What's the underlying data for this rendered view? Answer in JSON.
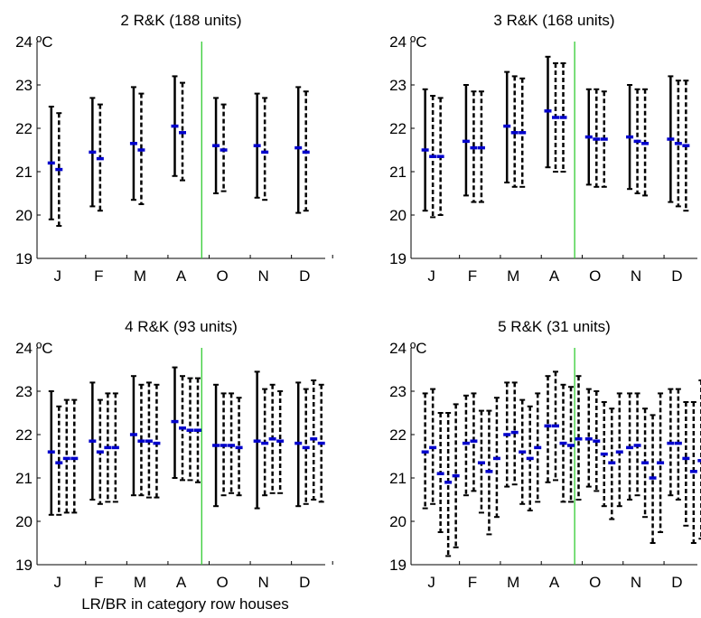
{
  "xlabel": "LR/BR in category row houses",
  "colors": {
    "error_bar": "#000000",
    "median": "#0000cc",
    "divider": "#33cc33",
    "axes": "#000000"
  },
  "chart_data": [
    {
      "type": "errorbar",
      "title": "2 R&K  (188 units)",
      "unit_label": "ºC",
      "ylim": [
        19,
        24
      ],
      "yticks": [
        19,
        20,
        21,
        22,
        23,
        24
      ],
      "months": [
        "J",
        "F",
        "M",
        "A",
        "O",
        "N",
        "D"
      ],
      "divider_after": "A",
      "groups": [
        {
          "month": "J",
          "bars": [
            {
              "low": 19.9,
              "high": 22.5,
              "median": 21.2
            },
            {
              "low": 19.75,
              "high": 22.35,
              "median": 21.05
            }
          ]
        },
        {
          "month": "F",
          "bars": [
            {
              "low": 20.2,
              "high": 22.7,
              "median": 21.45
            },
            {
              "low": 20.1,
              "high": 22.55,
              "median": 21.3
            }
          ]
        },
        {
          "month": "M",
          "bars": [
            {
              "low": 20.35,
              "high": 22.95,
              "median": 21.65
            },
            {
              "low": 20.25,
              "high": 22.8,
              "median": 21.5
            }
          ]
        },
        {
          "month": "A",
          "bars": [
            {
              "low": 20.9,
              "high": 23.2,
              "median": 22.05
            },
            {
              "low": 20.8,
              "high": 23.05,
              "median": 21.9
            }
          ]
        },
        {
          "month": "O",
          "bars": [
            {
              "low": 20.5,
              "high": 22.7,
              "median": 21.6
            },
            {
              "low": 20.55,
              "high": 22.55,
              "median": 21.5
            }
          ]
        },
        {
          "month": "N",
          "bars": [
            {
              "low": 20.4,
              "high": 22.8,
              "median": 21.6
            },
            {
              "low": 20.35,
              "high": 22.7,
              "median": 21.45
            }
          ]
        },
        {
          "month": "D",
          "bars": [
            {
              "low": 20.05,
              "high": 22.95,
              "median": 21.55
            },
            {
              "low": 20.1,
              "high": 22.85,
              "median": 21.45
            }
          ]
        }
      ]
    },
    {
      "type": "errorbar",
      "title": "3 R&K  (168 units)",
      "unit_label": "ºC",
      "ylim": [
        19,
        24
      ],
      "yticks": [
        19,
        20,
        21,
        22,
        23,
        24
      ],
      "months": [
        "J",
        "F",
        "M",
        "A",
        "O",
        "N",
        "D"
      ],
      "divider_after": "A",
      "groups": [
        {
          "month": "J",
          "bars": [
            {
              "low": 20.1,
              "high": 22.9,
              "median": 21.5
            },
            {
              "low": 19.95,
              "high": 22.75,
              "median": 21.35
            },
            {
              "low": 20.0,
              "high": 22.7,
              "median": 21.35
            }
          ]
        },
        {
          "month": "F",
          "bars": [
            {
              "low": 20.45,
              "high": 23.0,
              "median": 21.7
            },
            {
              "low": 20.3,
              "high": 22.85,
              "median": 21.55
            },
            {
              "low": 20.3,
              "high": 22.85,
              "median": 21.55
            }
          ]
        },
        {
          "month": "M",
          "bars": [
            {
              "low": 20.75,
              "high": 23.3,
              "median": 22.05
            },
            {
              "low": 20.65,
              "high": 23.2,
              "median": 21.9
            },
            {
              "low": 20.65,
              "high": 23.15,
              "median": 21.9
            }
          ]
        },
        {
          "month": "A",
          "bars": [
            {
              "low": 21.1,
              "high": 23.65,
              "median": 22.4
            },
            {
              "low": 21.0,
              "high": 23.5,
              "median": 22.25
            },
            {
              "low": 21.0,
              "high": 23.5,
              "median": 22.25
            }
          ]
        },
        {
          "month": "O",
          "bars": [
            {
              "low": 20.7,
              "high": 22.9,
              "median": 21.8
            },
            {
              "low": 20.65,
              "high": 22.9,
              "median": 21.75
            },
            {
              "low": 20.65,
              "high": 22.85,
              "median": 21.75
            }
          ]
        },
        {
          "month": "N",
          "bars": [
            {
              "low": 20.6,
              "high": 23.0,
              "median": 21.8
            },
            {
              "low": 20.5,
              "high": 22.9,
              "median": 21.7
            },
            {
              "low": 20.45,
              "high": 22.9,
              "median": 21.65
            }
          ]
        },
        {
          "month": "D",
          "bars": [
            {
              "low": 20.3,
              "high": 23.2,
              "median": 21.75
            },
            {
              "low": 20.2,
              "high": 23.1,
              "median": 21.65
            },
            {
              "low": 20.1,
              "high": 23.1,
              "median": 21.6
            }
          ]
        }
      ]
    },
    {
      "type": "errorbar",
      "title": "4 R&K  (93 units)",
      "unit_label": "ºC",
      "ylim": [
        19,
        24
      ],
      "yticks": [
        19,
        20,
        21,
        22,
        23,
        24
      ],
      "months": [
        "J",
        "F",
        "M",
        "A",
        "O",
        "N",
        "D"
      ],
      "divider_after": "A",
      "groups": [
        {
          "month": "J",
          "bars": [
            {
              "low": 20.15,
              "high": 23.0,
              "median": 21.6
            },
            {
              "low": 20.15,
              "high": 22.65,
              "median": 21.35
            },
            {
              "low": 20.2,
              "high": 22.8,
              "median": 21.45
            },
            {
              "low": 20.2,
              "high": 22.8,
              "median": 21.45
            }
          ]
        },
        {
          "month": "F",
          "bars": [
            {
              "low": 20.5,
              "high": 23.2,
              "median": 21.85
            },
            {
              "low": 20.4,
              "high": 22.8,
              "median": 21.6
            },
            {
              "low": 20.45,
              "high": 22.95,
              "median": 21.7
            },
            {
              "low": 20.45,
              "high": 22.95,
              "median": 21.7
            }
          ]
        },
        {
          "month": "M",
          "bars": [
            {
              "low": 20.6,
              "high": 23.35,
              "median": 22.0
            },
            {
              "low": 20.6,
              "high": 23.15,
              "median": 21.85
            },
            {
              "low": 20.55,
              "high": 23.2,
              "median": 21.85
            },
            {
              "low": 20.55,
              "high": 23.15,
              "median": 21.8
            }
          ]
        },
        {
          "month": "A",
          "bars": [
            {
              "low": 21.0,
              "high": 23.55,
              "median": 22.3
            },
            {
              "low": 20.95,
              "high": 23.35,
              "median": 22.15
            },
            {
              "low": 20.95,
              "high": 23.3,
              "median": 22.1
            },
            {
              "low": 20.9,
              "high": 23.3,
              "median": 22.1
            }
          ]
        },
        {
          "month": "O",
          "bars": [
            {
              "low": 20.35,
              "high": 23.15,
              "median": 21.75
            },
            {
              "low": 20.6,
              "high": 22.95,
              "median": 21.75
            },
            {
              "low": 20.65,
              "high": 22.95,
              "median": 21.75
            },
            {
              "low": 20.6,
              "high": 22.85,
              "median": 21.7
            }
          ]
        },
        {
          "month": "N",
          "bars": [
            {
              "low": 20.3,
              "high": 23.45,
              "median": 21.85
            },
            {
              "low": 20.6,
              "high": 23.05,
              "median": 21.8
            },
            {
              "low": 20.65,
              "high": 23.15,
              "median": 21.9
            },
            {
              "low": 20.65,
              "high": 23.0,
              "median": 21.85
            }
          ]
        },
        {
          "month": "D",
          "bars": [
            {
              "low": 20.35,
              "high": 23.2,
              "median": 21.8
            },
            {
              "low": 20.4,
              "high": 23.05,
              "median": 21.7
            },
            {
              "low": 20.5,
              "high": 23.25,
              "median": 21.9
            },
            {
              "low": 20.45,
              "high": 23.15,
              "median": 21.8
            }
          ]
        }
      ]
    },
    {
      "type": "errorbar",
      "title": "5 R&K  (31 units)",
      "unit_label": "ºC",
      "ylim": [
        19,
        24
      ],
      "yticks": [
        19,
        20,
        21,
        22,
        23,
        24
      ],
      "months": [
        "J",
        "F",
        "M",
        "A",
        "O",
        "N",
        "D"
      ],
      "divider_after": "A",
      "groups": [
        {
          "month": "J",
          "bars": [
            {
              "low": 20.3,
              "high": 22.95,
              "median": 21.6
            },
            {
              "low": 20.4,
              "high": 23.05,
              "median": 21.7
            },
            {
              "low": 19.75,
              "high": 22.5,
              "median": 21.1
            },
            {
              "low": 19.2,
              "high": 22.5,
              "median": 20.9
            },
            {
              "low": 19.4,
              "high": 22.7,
              "median": 21.05
            }
          ]
        },
        {
          "month": "F",
          "bars": [
            {
              "low": 20.6,
              "high": 22.9,
              "median": 21.8
            },
            {
              "low": 20.7,
              "high": 22.95,
              "median": 21.85
            },
            {
              "low": 20.2,
              "high": 22.55,
              "median": 21.35
            },
            {
              "low": 19.7,
              "high": 22.55,
              "median": 21.15
            },
            {
              "low": 20.1,
              "high": 22.85,
              "median": 21.45
            }
          ]
        },
        {
          "month": "M",
          "bars": [
            {
              "low": 20.8,
              "high": 23.2,
              "median": 22.0
            },
            {
              "low": 20.85,
              "high": 23.2,
              "median": 22.05
            },
            {
              "low": 20.4,
              "high": 22.8,
              "median": 21.6
            },
            {
              "low": 20.25,
              "high": 22.65,
              "median": 21.45
            },
            {
              "low": 20.45,
              "high": 22.95,
              "median": 21.7
            }
          ]
        },
        {
          "month": "A",
          "bars": [
            {
              "low": 20.9,
              "high": 23.35,
              "median": 22.2
            },
            {
              "low": 20.95,
              "high": 23.45,
              "median": 22.2
            },
            {
              "low": 20.45,
              "high": 23.15,
              "median": 21.8
            },
            {
              "low": 20.45,
              "high": 23.1,
              "median": 21.75
            },
            {
              "low": 20.5,
              "high": 23.35,
              "median": 21.9
            }
          ]
        },
        {
          "month": "O",
          "bars": [
            {
              "low": 20.8,
              "high": 23.05,
              "median": 21.9
            },
            {
              "low": 20.7,
              "high": 23.0,
              "median": 21.85
            },
            {
              "low": 20.35,
              "high": 22.75,
              "median": 21.55
            },
            {
              "low": 20.05,
              "high": 22.6,
              "median": 21.35
            },
            {
              "low": 20.35,
              "high": 22.95,
              "median": 21.6
            }
          ]
        },
        {
          "month": "N",
          "bars": [
            {
              "low": 20.5,
              "high": 22.95,
              "median": 21.7
            },
            {
              "low": 20.6,
              "high": 22.95,
              "median": 21.75
            },
            {
              "low": 20.1,
              "high": 22.6,
              "median": 21.35
            },
            {
              "low": 19.5,
              "high": 22.45,
              "median": 21.0
            },
            {
              "low": 19.75,
              "high": 22.95,
              "median": 21.35
            }
          ]
        },
        {
          "month": "D",
          "bars": [
            {
              "low": 20.6,
              "high": 23.05,
              "median": 21.8
            },
            {
              "low": 20.5,
              "high": 23.05,
              "median": 21.8
            },
            {
              "low": 19.9,
              "high": 22.75,
              "median": 21.45
            },
            {
              "low": 19.5,
              "high": 22.75,
              "median": 21.15
            },
            {
              "low": 19.6,
              "high": 23.25,
              "median": 21.4
            }
          ]
        }
      ]
    }
  ]
}
